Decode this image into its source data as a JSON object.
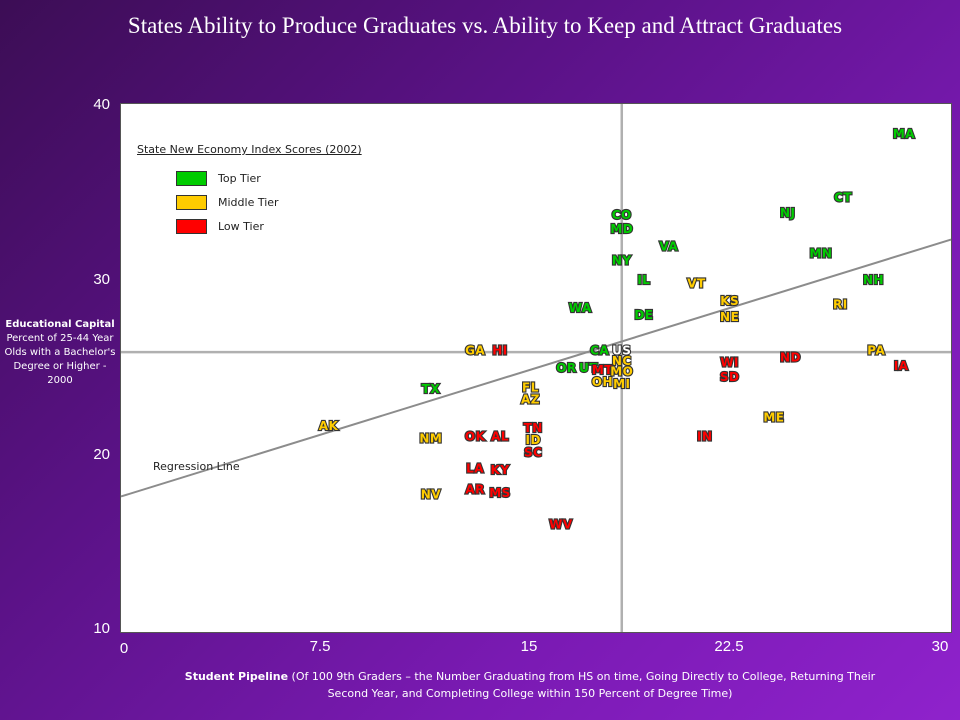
{
  "title": "States Ability to Produce Graduates vs. Ability to Keep and Attract Graduates",
  "ylabel_bold": "Educational Capital",
  "ylabel_rest": "Percent of 25-44 Year Olds with a Bachelor's Degree or Higher - 2000",
  "xlabel_bold": "Student Pipeline",
  "xlabel_rest": "(Of 100 9th Graders – the Number Graduating from HS on time, Going Directly to College, Returning Their Second Year, and Completing College within 150 Percent of Degree Time)",
  "legend": {
    "title": "State New Economy Index Scores (2002)",
    "items": [
      {
        "label": "Top Tier",
        "color": "#00cc00"
      },
      {
        "label": "Middle Tier",
        "color": "#ffcc00"
      },
      {
        "label": "Low Tier",
        "color": "#ff0000"
      }
    ]
  },
  "regression_label": "Regression Line",
  "chart_data": {
    "type": "scatter",
    "title": "States Ability to Produce Graduates vs. Ability to Keep and Attract Graduates",
    "xlabel": "Student Pipeline",
    "ylabel": "Educational Capital",
    "xlim": [
      0,
      30
    ],
    "ylim": [
      10,
      40
    ],
    "x_ticks": [
      "0",
      "7.5",
      "15",
      "22.5",
      "30"
    ],
    "y_ticks": [
      "10",
      "20",
      "30",
      "40"
    ],
    "reference_lines": {
      "x": 18.1,
      "y": 25.9
    },
    "regression_line": {
      "x": [
        0,
        30
      ],
      "y": [
        17.7,
        32.3
      ]
    },
    "legend_position": "top-left",
    "tier_colors": {
      "top": "#00cc00",
      "middle": "#ffcc00",
      "low": "#ff0000",
      "us": "#ffffff"
    },
    "points": [
      {
        "label": "MA",
        "x": 28.3,
        "y": 38.3,
        "tier": "top"
      },
      {
        "label": "CT",
        "x": 26.1,
        "y": 34.7,
        "tier": "top"
      },
      {
        "label": "NJ",
        "x": 24.1,
        "y": 33.8,
        "tier": "top"
      },
      {
        "label": "CO",
        "x": 18.1,
        "y": 33.7,
        "tier": "top"
      },
      {
        "label": "MD",
        "x": 18.1,
        "y": 32.9,
        "tier": "top"
      },
      {
        "label": "VA",
        "x": 19.8,
        "y": 31.9,
        "tier": "top"
      },
      {
        "label": "MN",
        "x": 25.3,
        "y": 31.5,
        "tier": "top"
      },
      {
        "label": "NY",
        "x": 18.1,
        "y": 31.1,
        "tier": "top"
      },
      {
        "label": "IL",
        "x": 18.9,
        "y": 30.0,
        "tier": "top"
      },
      {
        "label": "NH",
        "x": 27.2,
        "y": 30.0,
        "tier": "top"
      },
      {
        "label": "VT",
        "x": 20.8,
        "y": 29.8,
        "tier": "middle"
      },
      {
        "label": "KS",
        "x": 22.0,
        "y": 28.8,
        "tier": "middle"
      },
      {
        "label": "RI",
        "x": 26.0,
        "y": 28.6,
        "tier": "middle"
      },
      {
        "label": "WA",
        "x": 16.6,
        "y": 28.4,
        "tier": "top"
      },
      {
        "label": "DE",
        "x": 18.9,
        "y": 28.0,
        "tier": "top"
      },
      {
        "label": "NE",
        "x": 22.0,
        "y": 27.9,
        "tier": "middle"
      },
      {
        "label": "GA",
        "x": 12.8,
        "y": 26.0,
        "tier": "middle"
      },
      {
        "label": "HI",
        "x": 13.7,
        "y": 26.0,
        "tier": "red"
      },
      {
        "label": "CA",
        "x": 17.3,
        "y": 26.0,
        "tier": "top"
      },
      {
        "label": "US",
        "x": 18.1,
        "y": 26.0,
        "tier": "us"
      },
      {
        "label": "PA",
        "x": 27.3,
        "y": 26.0,
        "tier": "middle"
      },
      {
        "label": "ND",
        "x": 24.2,
        "y": 25.6,
        "tier": "low"
      },
      {
        "label": "NC",
        "x": 18.1,
        "y": 25.4,
        "tier": "middle"
      },
      {
        "label": "WI",
        "x": 22.0,
        "y": 25.3,
        "tier": "low"
      },
      {
        "label": "IA",
        "x": 28.2,
        "y": 25.1,
        "tier": "low"
      },
      {
        "label": "OR",
        "x": 16.1,
        "y": 25.0,
        "tier": "top"
      },
      {
        "label": "UT",
        "x": 16.9,
        "y": 25.0,
        "tier": "top"
      },
      {
        "label": "MT",
        "x": 17.4,
        "y": 24.9,
        "tier": "low"
      },
      {
        "label": "MO",
        "x": 18.1,
        "y": 24.8,
        "tier": "middle"
      },
      {
        "label": "SD",
        "x": 22.0,
        "y": 24.5,
        "tier": "low"
      },
      {
        "label": "OH",
        "x": 17.4,
        "y": 24.2,
        "tier": "middle"
      },
      {
        "label": "MI",
        "x": 18.1,
        "y": 24.1,
        "tier": "middle"
      },
      {
        "label": "TX",
        "x": 11.2,
        "y": 23.8,
        "tier": "top"
      },
      {
        "label": "FL",
        "x": 14.8,
        "y": 23.9,
        "tier": "middle"
      },
      {
        "label": "AZ",
        "x": 14.8,
        "y": 23.2,
        "tier": "middle"
      },
      {
        "label": "ME",
        "x": 23.6,
        "y": 22.2,
        "tier": "middle"
      },
      {
        "label": "AK",
        "x": 7.5,
        "y": 21.7,
        "tier": "middle"
      },
      {
        "label": "TN",
        "x": 14.9,
        "y": 21.6,
        "tier": "low"
      },
      {
        "label": "NM",
        "x": 11.2,
        "y": 21.0,
        "tier": "middle"
      },
      {
        "label": "OK",
        "x": 12.8,
        "y": 21.1,
        "tier": "low"
      },
      {
        "label": "AL",
        "x": 13.7,
        "y": 21.1,
        "tier": "low"
      },
      {
        "label": "IN",
        "x": 21.1,
        "y": 21.1,
        "tier": "low"
      },
      {
        "label": "ID",
        "x": 14.9,
        "y": 20.9,
        "tier": "middle"
      },
      {
        "label": "SC",
        "x": 14.9,
        "y": 20.2,
        "tier": "low"
      },
      {
        "label": "LA",
        "x": 12.8,
        "y": 19.3,
        "tier": "low"
      },
      {
        "label": "KY",
        "x": 13.7,
        "y": 19.2,
        "tier": "low"
      },
      {
        "label": "AR",
        "x": 12.8,
        "y": 18.1,
        "tier": "low"
      },
      {
        "label": "NV",
        "x": 11.2,
        "y": 17.8,
        "tier": "middle"
      },
      {
        "label": "MS",
        "x": 13.7,
        "y": 17.9,
        "tier": "low"
      },
      {
        "label": "WV",
        "x": 15.9,
        "y": 16.1,
        "tier": "low"
      }
    ]
  }
}
